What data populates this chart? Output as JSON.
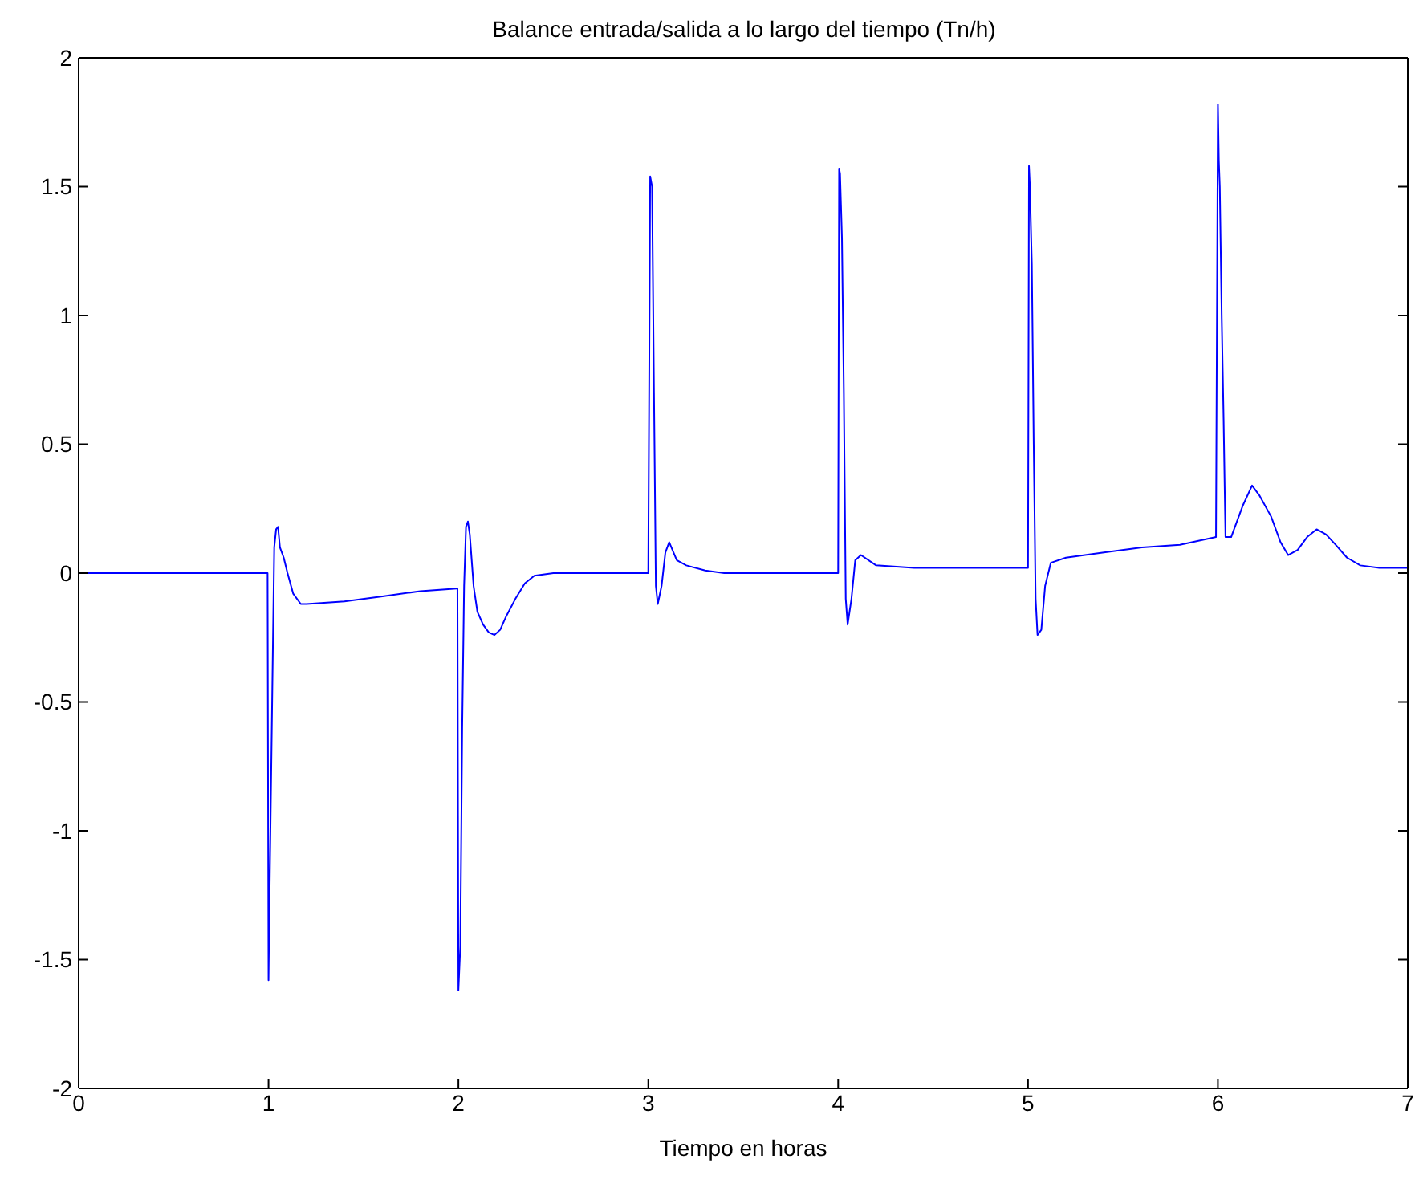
{
  "chart_data": {
    "type": "line",
    "title": "Balance entrada/salida a lo largo del tiempo (Tn/h)",
    "xlabel": "Tiempo en horas",
    "xlim": [
      0,
      7
    ],
    "xticks": [
      0,
      1,
      2,
      3,
      4,
      5,
      6,
      7
    ],
    "ylim": [
      -2,
      2
    ],
    "yticks": [
      -2,
      -1.5,
      -1,
      -0.5,
      0,
      0.5,
      1,
      1.5,
      2
    ],
    "marker": "none",
    "line_style": "solid",
    "series": [
      {
        "color": "#0000ff",
        "x": [
          0,
          0.99,
          0.995,
          1.0,
          1.005,
          1.01,
          1.02,
          1.03,
          1.04,
          1.05,
          1.06,
          1.08,
          1.1,
          1.13,
          1.17,
          1.2,
          1.4,
          1.6,
          1.8,
          1.99,
          1.995,
          2.0,
          2.01,
          2.02,
          2.03,
          2.04,
          2.05,
          2.06,
          2.07,
          2.08,
          2.1,
          2.13,
          2.16,
          2.19,
          2.22,
          2.25,
          2.3,
          2.35,
          2.4,
          2.5,
          2.9,
          2.99,
          3.0,
          3.01,
          3.015,
          3.02,
          3.03,
          3.04,
          3.05,
          3.07,
          3.09,
          3.11,
          3.15,
          3.2,
          3.3,
          3.4,
          3.99,
          4.0,
          4.005,
          4.01,
          4.02,
          4.03,
          4.04,
          4.05,
          4.07,
          4.09,
          4.12,
          4.2,
          4.4,
          4.99,
          5.0,
          5.005,
          5.01,
          5.02,
          5.03,
          5.04,
          5.05,
          5.07,
          5.09,
          5.12,
          5.2,
          5.4,
          5.6,
          5.8,
          5.99,
          6.0,
          6.005,
          6.01,
          6.02,
          6.03,
          6.04,
          6.07,
          6.1,
          6.13,
          6.18,
          6.22,
          6.28,
          6.33,
          6.37,
          6.42,
          6.47,
          6.52,
          6.57,
          6.62,
          6.68,
          6.75,
          6.85,
          7.0
        ],
        "values": [
          0,
          0,
          0,
          -1.58,
          -1.27,
          -1.0,
          -0.45,
          0.1,
          0.17,
          0.18,
          0.1,
          0.06,
          0.0,
          -0.08,
          -0.12,
          -0.12,
          -0.11,
          -0.09,
          -0.07,
          -0.06,
          -0.06,
          -1.62,
          -1.45,
          -0.6,
          -0.05,
          0.18,
          0.2,
          0.15,
          0.05,
          -0.05,
          -0.15,
          -0.2,
          -0.23,
          -0.24,
          -0.22,
          -0.17,
          -0.1,
          -0.04,
          -0.01,
          0.0,
          0.0,
          0.0,
          0.0,
          1.54,
          1.52,
          1.5,
          0.7,
          -0.05,
          -0.12,
          -0.05,
          0.08,
          0.12,
          0.05,
          0.03,
          0.01,
          0.0,
          0.0,
          0.0,
          1.57,
          1.55,
          1.3,
          0.7,
          -0.1,
          -0.2,
          -0.1,
          0.05,
          0.07,
          0.03,
          0.02,
          0.02,
          0.02,
          1.58,
          1.5,
          1.2,
          0.5,
          -0.1,
          -0.24,
          -0.22,
          -0.05,
          0.04,
          0.06,
          0.08,
          0.1,
          0.11,
          0.14,
          1.82,
          1.6,
          1.5,
          1.0,
          0.6,
          0.14,
          0.14,
          0.2,
          0.26,
          0.34,
          0.3,
          0.22,
          0.12,
          0.07,
          0.09,
          0.14,
          0.17,
          0.15,
          0.11,
          0.06,
          0.03,
          0.02,
          0.02
        ]
      }
    ]
  }
}
